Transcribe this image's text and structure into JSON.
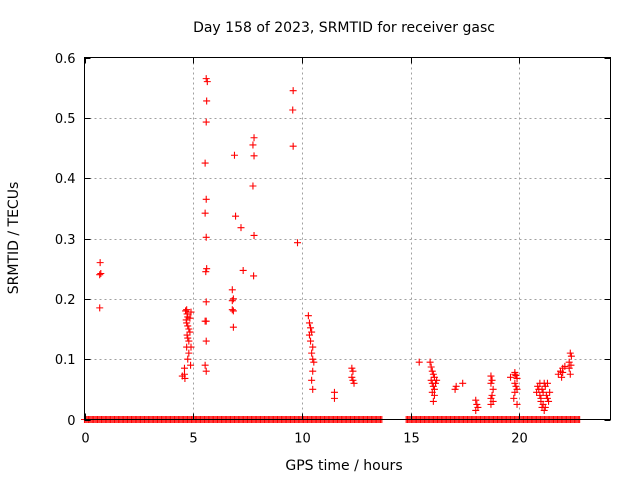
{
  "chart_data": {
    "type": "scatter",
    "title": "Day 158 of 2023, SRMTID for receiver gasc",
    "xlabel": "GPS time / hours",
    "ylabel": "SRMTID / TECUs",
    "xlim": [
      0,
      24.2
    ],
    "ylim": [
      0,
      0.6
    ],
    "x_ticks": [
      0,
      5,
      10,
      15,
      20
    ],
    "y_ticks": [
      0,
      0.1,
      0.2,
      0.3,
      0.4,
      0.5,
      0.6
    ],
    "x_tick_labels": [
      "0",
      "5",
      "10",
      "15",
      "20"
    ],
    "y_tick_labels": [
      "0",
      "0.1",
      "0.2",
      "0.3",
      "0.4",
      "0.5",
      "0.6"
    ],
    "grid": true,
    "marker": "+",
    "color": "#ff0000",
    "zero_segments": [
      [
        0.0,
        13.7
      ],
      [
        14.8,
        22.8
      ]
    ],
    "series": [
      {
        "name": "SRMTID",
        "points": [
          [
            0.7,
            0.24
          ],
          [
            0.72,
            0.26
          ],
          [
            0.75,
            0.242
          ],
          [
            0.7,
            0.185
          ],
          [
            4.5,
            0.072
          ],
          [
            4.6,
            0.075
          ],
          [
            4.62,
            0.068
          ],
          [
            4.6,
            0.085
          ],
          [
            4.65,
            0.18
          ],
          [
            4.7,
            0.182
          ],
          [
            4.72,
            0.175
          ],
          [
            4.75,
            0.17
          ],
          [
            4.68,
            0.165
          ],
          [
            4.7,
            0.16
          ],
          [
            4.75,
            0.155
          ],
          [
            4.8,
            0.15
          ],
          [
            4.72,
            0.14
          ],
          [
            4.75,
            0.135
          ],
          [
            4.8,
            0.13
          ],
          [
            4.7,
            0.12
          ],
          [
            4.8,
            0.11
          ],
          [
            4.75,
            0.1
          ],
          [
            4.85,
            0.145
          ],
          [
            4.9,
            0.12
          ],
          [
            4.88,
            0.09
          ],
          [
            4.9,
            0.178
          ],
          [
            4.85,
            0.168
          ],
          [
            5.6,
            0.565
          ],
          [
            5.65,
            0.56
          ],
          [
            5.62,
            0.528
          ],
          [
            5.6,
            0.493
          ],
          [
            5.55,
            0.425
          ],
          [
            5.6,
            0.365
          ],
          [
            5.55,
            0.342
          ],
          [
            5.6,
            0.302
          ],
          [
            5.62,
            0.25
          ],
          [
            5.58,
            0.245
          ],
          [
            5.6,
            0.195
          ],
          [
            5.55,
            0.163
          ],
          [
            5.6,
            0.163
          ],
          [
            5.6,
            0.13
          ],
          [
            5.55,
            0.09
          ],
          [
            5.6,
            0.08
          ],
          [
            6.8,
            0.215
          ],
          [
            6.85,
            0.2
          ],
          [
            6.8,
            0.197
          ],
          [
            6.85,
            0.18
          ],
          [
            6.8,
            0.182
          ],
          [
            6.85,
            0.153
          ],
          [
            6.9,
            0.438
          ],
          [
            6.95,
            0.337
          ],
          [
            7.2,
            0.318
          ],
          [
            7.3,
            0.247
          ],
          [
            7.8,
            0.467
          ],
          [
            7.75,
            0.455
          ],
          [
            7.8,
            0.437
          ],
          [
            7.75,
            0.387
          ],
          [
            7.8,
            0.305
          ],
          [
            7.78,
            0.238
          ],
          [
            9.6,
            0.545
          ],
          [
            9.58,
            0.513
          ],
          [
            9.6,
            0.453
          ],
          [
            9.8,
            0.293
          ],
          [
            10.3,
            0.172
          ],
          [
            10.35,
            0.16
          ],
          [
            10.4,
            0.152
          ],
          [
            10.45,
            0.145
          ],
          [
            10.35,
            0.14
          ],
          [
            10.4,
            0.13
          ],
          [
            10.5,
            0.12
          ],
          [
            10.45,
            0.11
          ],
          [
            10.5,
            0.1
          ],
          [
            10.55,
            0.095
          ],
          [
            10.5,
            0.08
          ],
          [
            10.45,
            0.065
          ],
          [
            10.5,
            0.05
          ],
          [
            11.5,
            0.045
          ],
          [
            11.5,
            0.035
          ],
          [
            12.3,
            0.085
          ],
          [
            12.35,
            0.08
          ],
          [
            12.3,
            0.07
          ],
          [
            12.35,
            0.065
          ],
          [
            12.4,
            0.06
          ],
          [
            15.4,
            0.095
          ],
          [
            15.9,
            0.095
          ],
          [
            15.95,
            0.087
          ],
          [
            16.0,
            0.08
          ],
          [
            16.05,
            0.075
          ],
          [
            16.1,
            0.07
          ],
          [
            15.95,
            0.065
          ],
          [
            16.0,
            0.06
          ],
          [
            16.05,
            0.055
          ],
          [
            16.1,
            0.05
          ],
          [
            16.2,
            0.065
          ],
          [
            16.0,
            0.045
          ],
          [
            16.1,
            0.04
          ],
          [
            16.05,
            0.03
          ],
          [
            16.15,
            0.06
          ],
          [
            17.1,
            0.055
          ],
          [
            17.05,
            0.05
          ],
          [
            17.4,
            0.06
          ],
          [
            18.0,
            0.032
          ],
          [
            18.05,
            0.025
          ],
          [
            18.1,
            0.02
          ],
          [
            18.0,
            0.015
          ],
          [
            18.7,
            0.072
          ],
          [
            18.75,
            0.065
          ],
          [
            18.7,
            0.06
          ],
          [
            18.8,
            0.05
          ],
          [
            18.75,
            0.04
          ],
          [
            18.7,
            0.035
          ],
          [
            18.8,
            0.03
          ],
          [
            18.7,
            0.025
          ],
          [
            19.6,
            0.07
          ],
          [
            19.8,
            0.078
          ],
          [
            19.85,
            0.073
          ],
          [
            19.9,
            0.068
          ],
          [
            19.8,
            0.06
          ],
          [
            19.85,
            0.055
          ],
          [
            19.9,
            0.05
          ],
          [
            19.8,
            0.045
          ],
          [
            19.75,
            0.035
          ],
          [
            19.9,
            0.025
          ],
          [
            19.8,
            0.075
          ],
          [
            20.8,
            0.045
          ],
          [
            20.85,
            0.055
          ],
          [
            20.9,
            0.05
          ],
          [
            20.95,
            0.04
          ],
          [
            21.0,
            0.035
          ],
          [
            21.05,
            0.05
          ],
          [
            21.1,
            0.045
          ],
          [
            21.15,
            0.06
          ],
          [
            21.2,
            0.055
          ],
          [
            21.0,
            0.03
          ],
          [
            21.1,
            0.025
          ],
          [
            21.2,
            0.02
          ],
          [
            21.25,
            0.04
          ],
          [
            21.3,
            0.035
          ],
          [
            21.35,
            0.03
          ],
          [
            21.4,
            0.045
          ],
          [
            21.3,
            0.06
          ],
          [
            21.15,
            0.015
          ],
          [
            20.95,
            0.06
          ],
          [
            21.05,
            0.02
          ],
          [
            21.8,
            0.075
          ],
          [
            21.9,
            0.08
          ],
          [
            22.0,
            0.085
          ],
          [
            21.95,
            0.07
          ],
          [
            22.1,
            0.088
          ],
          [
            22.0,
            0.078
          ],
          [
            22.3,
            0.095
          ],
          [
            22.35,
            0.11
          ],
          [
            22.4,
            0.105
          ],
          [
            22.38,
            0.09
          ],
          [
            22.3,
            0.085
          ],
          [
            22.35,
            0.075
          ]
        ]
      }
    ]
  }
}
